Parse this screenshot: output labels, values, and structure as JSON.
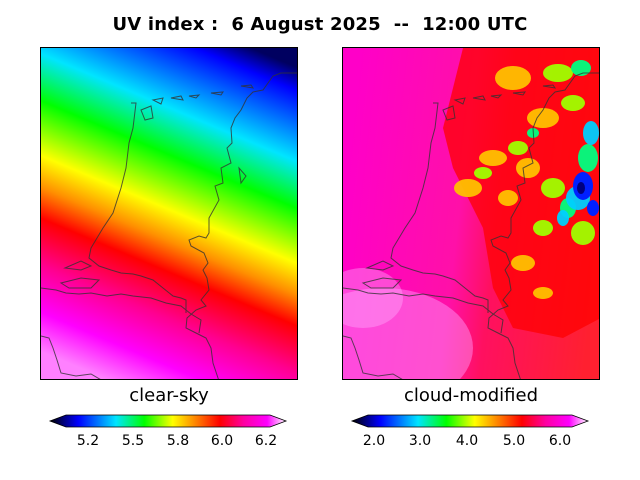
{
  "title": "UV index :  6 August 2025  --  12:00 UTC",
  "panels": [
    {
      "label": "clear-sky",
      "colorbar": {
        "ticks": [
          "5.2",
          "5.5",
          "5.8",
          "6.0",
          "6.2"
        ]
      }
    },
    {
      "label": "cloud-modified",
      "colorbar": {
        "ticks": [
          "2.0",
          "3.0",
          "4.0",
          "5.0",
          "6.0"
        ]
      }
    }
  ],
  "colors": {
    "cmap": [
      "#000000",
      "#0000ff",
      "#00e5ff",
      "#00ff00",
      "#ffff00",
      "#ff8000",
      "#ff0000",
      "#ff00a0",
      "#ff00ff",
      "#ffffff"
    ]
  }
}
